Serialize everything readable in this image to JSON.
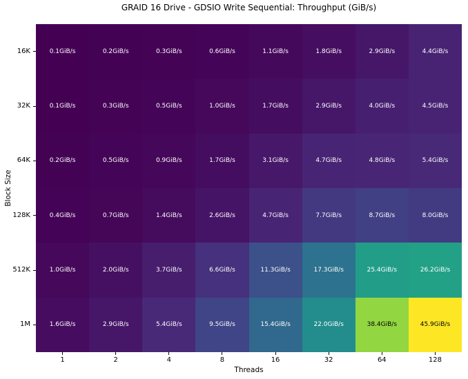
{
  "chart_data": {
    "type": "heatmap",
    "title": "GRAID 16 Drive - GDSIO Write Sequential: Throughput (GiB/s)",
    "xlabel": "Threads",
    "ylabel": "Block Size",
    "x_tick_labels": [
      "1",
      "2",
      "4",
      "8",
      "16",
      "32",
      "64",
      "128"
    ],
    "y_tick_labels": [
      "16K",
      "32K",
      "64K",
      "128K",
      "512K",
      "1M"
    ],
    "unit": "GiB/s",
    "values": [
      [
        0.1,
        0.2,
        0.3,
        0.6,
        1.1,
        1.8,
        2.9,
        4.4
      ],
      [
        0.1,
        0.3,
        0.5,
        1.0,
        1.7,
        2.9,
        4.0,
        4.5
      ],
      [
        0.2,
        0.5,
        0.9,
        1.7,
        3.1,
        4.7,
        4.8,
        5.4
      ],
      [
        0.4,
        0.7,
        1.4,
        2.6,
        4.7,
        7.7,
        8.7,
        8.0
      ],
      [
        1.0,
        2.0,
        3.7,
        6.6,
        11.3,
        17.3,
        25.4,
        26.2
      ],
      [
        1.6,
        2.9,
        5.4,
        9.5,
        15.4,
        22.0,
        38.4,
        45.9
      ]
    ],
    "cell_labels": [
      [
        "0.1GiB/s",
        "0.2GiB/s",
        "0.3GiB/s",
        "0.6GiB/s",
        "1.1GiB/s",
        "1.8GiB/s",
        "2.9GiB/s",
        "4.4GiB/s"
      ],
      [
        "0.1GiB/s",
        "0.3GiB/s",
        "0.5GiB/s",
        "1.0GiB/s",
        "1.7GiB/s",
        "2.9GiB/s",
        "4.0GiB/s",
        "4.5GiB/s"
      ],
      [
        "0.2GiB/s",
        "0.5GiB/s",
        "0.9GiB/s",
        "1.7GiB/s",
        "3.1GiB/s",
        "4.7GiB/s",
        "4.8GiB/s",
        "5.4GiB/s"
      ],
      [
        "0.4GiB/s",
        "0.7GiB/s",
        "1.4GiB/s",
        "2.6GiB/s",
        "4.7GiB/s",
        "7.7GiB/s",
        "8.7GiB/s",
        "8.0GiB/s"
      ],
      [
        "1.0GiB/s",
        "2.0GiB/s",
        "3.7GiB/s",
        "6.6GiB/s",
        "11.3GiB/s",
        "17.3GiB/s",
        "25.4GiB/s",
        "26.2GiB/s"
      ],
      [
        "1.6GiB/s",
        "2.9GiB/s",
        "5.4GiB/s",
        "9.5GiB/s",
        "15.4GiB/s",
        "22.0GiB/s",
        "38.4GiB/s",
        "45.9GiB/s"
      ]
    ],
    "colormap": "viridis",
    "vmin": 0.1,
    "vmax": 45.9,
    "colormap_stops": [
      "#440154",
      "#482475",
      "#414487",
      "#355f8d",
      "#2a788e",
      "#21918c",
      "#22a884",
      "#44bf70",
      "#7ad151",
      "#bddf26",
      "#fde725"
    ],
    "annotation_color_on_dark": "#ffffff",
    "annotation_color_on_light": "#000000",
    "grid": false,
    "legend": "none"
  }
}
